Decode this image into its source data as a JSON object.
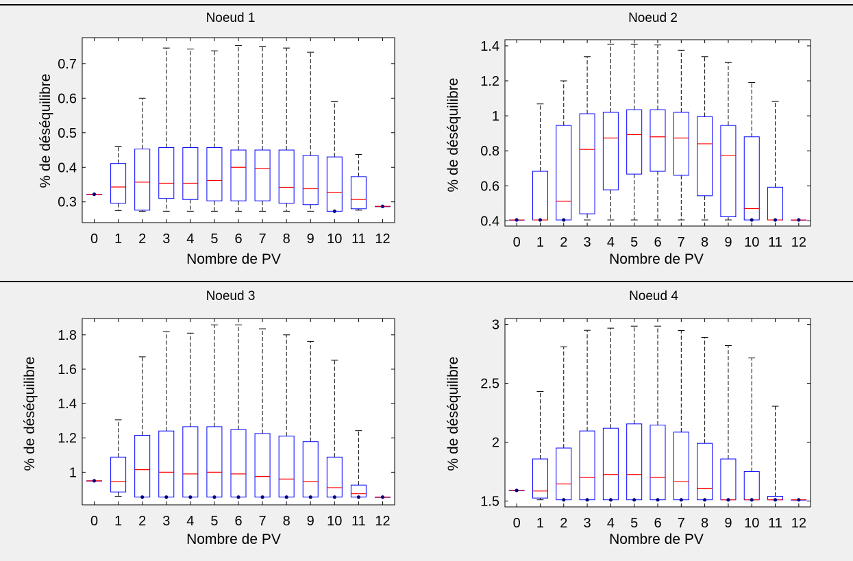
{
  "figure": {
    "background": "#f0f0f0",
    "axes_background": "#ffffff",
    "box_color": "#0000ff",
    "median_color": "#ff0000",
    "whisker_color": "#000000",
    "outlier_color": "#000080"
  },
  "chart_data": [
    {
      "type": "boxplot",
      "title": "Noeud 1",
      "xlabel": "Nombre de PV",
      "ylabel": "% de déséquilibre",
      "categories": [
        "0",
        "1",
        "2",
        "3",
        "4",
        "5",
        "6",
        "7",
        "8",
        "9",
        "10",
        "11",
        "12"
      ],
      "ylim": [
        0.24,
        0.775
      ],
      "yticks": [
        0.3,
        0.4,
        0.5,
        0.6,
        0.7
      ],
      "yticklabels": [
        "0.3",
        "0.4",
        "0.5",
        "0.6",
        "0.7"
      ],
      "grid": false,
      "boxes": [
        {
          "x": "0",
          "min": 0.322,
          "q1": 0.322,
          "median": 0.322,
          "q3": 0.322,
          "max": 0.322,
          "outliers": [
            0.322
          ]
        },
        {
          "x": "1",
          "min": 0.275,
          "q1": 0.296,
          "median": 0.343,
          "q3": 0.411,
          "max": 0.461,
          "outliers": []
        },
        {
          "x": "2",
          "min": 0.273,
          "q1": 0.276,
          "median": 0.357,
          "q3": 0.453,
          "max": 0.6,
          "outliers": []
        },
        {
          "x": "3",
          "min": 0.273,
          "q1": 0.31,
          "median": 0.354,
          "q3": 0.457,
          "max": 0.745,
          "outliers": []
        },
        {
          "x": "4",
          "min": 0.273,
          "q1": 0.307,
          "median": 0.354,
          "q3": 0.457,
          "max": 0.742,
          "outliers": []
        },
        {
          "x": "5",
          "min": 0.273,
          "q1": 0.303,
          "median": 0.362,
          "q3": 0.457,
          "max": 0.737,
          "outliers": []
        },
        {
          "x": "6",
          "min": 0.273,
          "q1": 0.303,
          "median": 0.4,
          "q3": 0.45,
          "max": 0.752,
          "outliers": []
        },
        {
          "x": "7",
          "min": 0.273,
          "q1": 0.303,
          "median": 0.396,
          "q3": 0.45,
          "max": 0.75,
          "outliers": []
        },
        {
          "x": "8",
          "min": 0.273,
          "q1": 0.296,
          "median": 0.342,
          "q3": 0.45,
          "max": 0.745,
          "outliers": []
        },
        {
          "x": "9",
          "min": 0.273,
          "q1": 0.292,
          "median": 0.338,
          "q3": 0.434,
          "max": 0.733,
          "outliers": []
        },
        {
          "x": "10",
          "min": 0.273,
          "q1": 0.273,
          "median": 0.327,
          "q3": 0.43,
          "max": 0.59,
          "outliers": [
            0.273
          ]
        },
        {
          "x": "11",
          "min": 0.276,
          "q1": 0.28,
          "median": 0.307,
          "q3": 0.373,
          "max": 0.437,
          "outliers": []
        },
        {
          "x": "12",
          "min": 0.287,
          "q1": 0.287,
          "median": 0.287,
          "q3": 0.287,
          "max": 0.287,
          "outliers": [
            0.287
          ]
        }
      ]
    },
    {
      "type": "boxplot",
      "title": "Noeud 2",
      "xlabel": "Nombre de PV",
      "ylabel": "% de déséquilibre",
      "categories": [
        "0",
        "1",
        "2",
        "3",
        "4",
        "5",
        "6",
        "7",
        "8",
        "9",
        "10",
        "11",
        "12"
      ],
      "ylim": [
        0.37,
        1.435
      ],
      "yticks": [
        0.4,
        0.6,
        0.8,
        1.0,
        1.2,
        1.4
      ],
      "yticklabels": [
        "0.4",
        "0.6",
        "0.8",
        "1",
        "1.2",
        "1.4"
      ],
      "grid": false,
      "boxes": [
        {
          "x": "0",
          "min": 0.405,
          "q1": 0.405,
          "median": 0.405,
          "q3": 0.405,
          "max": 0.405,
          "outliers": [
            0.405
          ]
        },
        {
          "x": "1",
          "min": 0.405,
          "q1": 0.405,
          "median": 0.405,
          "q3": 0.683,
          "max": 1.068,
          "outliers": [
            0.405
          ]
        },
        {
          "x": "2",
          "min": 0.405,
          "q1": 0.405,
          "median": 0.512,
          "q3": 0.945,
          "max": 1.2,
          "outliers": [
            0.405
          ]
        },
        {
          "x": "3",
          "min": 0.405,
          "q1": 0.44,
          "median": 0.808,
          "q3": 1.012,
          "max": 1.338,
          "outliers": []
        },
        {
          "x": "4",
          "min": 0.405,
          "q1": 0.577,
          "median": 0.873,
          "q3": 1.02,
          "max": 1.41,
          "outliers": []
        },
        {
          "x": "5",
          "min": 0.405,
          "q1": 0.667,
          "median": 0.893,
          "q3": 1.035,
          "max": 1.41,
          "outliers": []
        },
        {
          "x": "6",
          "min": 0.405,
          "q1": 0.683,
          "median": 0.88,
          "q3": 1.035,
          "max": 1.405,
          "outliers": []
        },
        {
          "x": "7",
          "min": 0.405,
          "q1": 0.66,
          "median": 0.873,
          "q3": 1.02,
          "max": 1.375,
          "outliers": []
        },
        {
          "x": "8",
          "min": 0.405,
          "q1": 0.543,
          "median": 0.84,
          "q3": 0.995,
          "max": 1.338,
          "outliers": []
        },
        {
          "x": "9",
          "min": 0.405,
          "q1": 0.423,
          "median": 0.775,
          "q3": 0.945,
          "max": 1.305,
          "outliers": []
        },
        {
          "x": "10",
          "min": 0.405,
          "q1": 0.405,
          "median": 0.47,
          "q3": 0.88,
          "max": 1.19,
          "outliers": [
            0.405
          ]
        },
        {
          "x": "11",
          "min": 0.405,
          "q1": 0.405,
          "median": 0.405,
          "q3": 0.592,
          "max": 1.082,
          "outliers": [
            0.405
          ]
        },
        {
          "x": "12",
          "min": 0.405,
          "q1": 0.405,
          "median": 0.405,
          "q3": 0.405,
          "max": 0.405,
          "outliers": [
            0.405
          ]
        }
      ]
    },
    {
      "type": "boxplot",
      "title": "Noeud 3",
      "xlabel": "Nombre de PV",
      "ylabel": "% de déséquilibre",
      "categories": [
        "0",
        "1",
        "2",
        "3",
        "4",
        "5",
        "6",
        "7",
        "8",
        "9",
        "10",
        "11",
        "12"
      ],
      "ylim": [
        0.81,
        1.895
      ],
      "yticks": [
        1.0,
        1.2,
        1.4,
        1.6,
        1.8
      ],
      "yticklabels": [
        "1",
        "1.2",
        "1.4",
        "1.6",
        "1.8"
      ],
      "grid": false,
      "boxes": [
        {
          "x": "0",
          "min": 0.95,
          "q1": 0.95,
          "median": 0.95,
          "q3": 0.95,
          "max": 0.95,
          "outliers": [
            0.95
          ]
        },
        {
          "x": "1",
          "min": 0.86,
          "q1": 0.885,
          "median": 0.945,
          "q3": 1.088,
          "max": 1.305,
          "outliers": []
        },
        {
          "x": "2",
          "min": 0.855,
          "q1": 0.855,
          "median": 1.015,
          "q3": 1.215,
          "max": 1.672,
          "outliers": [
            0.855
          ]
        },
        {
          "x": "3",
          "min": 0.855,
          "q1": 0.855,
          "median": 1.0,
          "q3": 1.24,
          "max": 1.818,
          "outliers": [
            0.855
          ]
        },
        {
          "x": "4",
          "min": 0.855,
          "q1": 0.855,
          "median": 0.99,
          "q3": 1.265,
          "max": 1.81,
          "outliers": [
            0.855
          ]
        },
        {
          "x": "5",
          "min": 0.855,
          "q1": 0.855,
          "median": 1.0,
          "q3": 1.265,
          "max": 1.858,
          "outliers": [
            0.855
          ]
        },
        {
          "x": "6",
          "min": 0.855,
          "q1": 0.855,
          "median": 0.99,
          "q3": 1.248,
          "max": 1.858,
          "outliers": [
            0.855
          ]
        },
        {
          "x": "7",
          "min": 0.855,
          "q1": 0.855,
          "median": 0.975,
          "q3": 1.225,
          "max": 1.835,
          "outliers": [
            0.855
          ]
        },
        {
          "x": "8",
          "min": 0.855,
          "q1": 0.855,
          "median": 0.96,
          "q3": 1.21,
          "max": 1.8,
          "outliers": [
            0.855
          ]
        },
        {
          "x": "9",
          "min": 0.855,
          "q1": 0.855,
          "median": 0.945,
          "q3": 1.178,
          "max": 1.762,
          "outliers": [
            0.855
          ]
        },
        {
          "x": "10",
          "min": 0.855,
          "q1": 0.855,
          "median": 0.91,
          "q3": 1.088,
          "max": 1.652,
          "outliers": [
            0.855
          ]
        },
        {
          "x": "11",
          "min": 0.855,
          "q1": 0.855,
          "median": 0.875,
          "q3": 0.925,
          "max": 1.242,
          "outliers": [
            0.855
          ]
        },
        {
          "x": "12",
          "min": 0.855,
          "q1": 0.855,
          "median": 0.855,
          "q3": 0.855,
          "max": 0.855,
          "outliers": [
            0.855
          ]
        }
      ]
    },
    {
      "type": "boxplot",
      "title": "Noeud 4",
      "xlabel": "Nombre de PV",
      "ylabel": "% de déséquilibre",
      "categories": [
        "0",
        "1",
        "2",
        "3",
        "4",
        "5",
        "6",
        "7",
        "8",
        "9",
        "10",
        "11",
        "12"
      ],
      "ylim": [
        1.45,
        3.05
      ],
      "yticks": [
        1.5,
        2.0,
        2.5,
        3.0
      ],
      "yticklabels": [
        "1.5",
        "2",
        "2.5",
        "3"
      ],
      "grid": false,
      "boxes": [
        {
          "x": "0",
          "min": 1.59,
          "q1": 1.59,
          "median": 1.59,
          "q3": 1.59,
          "max": 1.59,
          "outliers": [
            1.59
          ]
        },
        {
          "x": "1",
          "min": 1.51,
          "q1": 1.525,
          "median": 1.585,
          "q3": 1.857,
          "max": 2.43,
          "outliers": []
        },
        {
          "x": "2",
          "min": 1.51,
          "q1": 1.51,
          "median": 1.645,
          "q3": 1.95,
          "max": 2.81,
          "outliers": [
            1.51
          ]
        },
        {
          "x": "3",
          "min": 1.51,
          "q1": 1.51,
          "median": 1.7,
          "q3": 2.095,
          "max": 2.95,
          "outliers": [
            1.51
          ]
        },
        {
          "x": "4",
          "min": 1.51,
          "q1": 1.51,
          "median": 1.725,
          "q3": 2.118,
          "max": 2.968,
          "outliers": [
            1.51
          ]
        },
        {
          "x": "5",
          "min": 1.51,
          "q1": 1.51,
          "median": 1.725,
          "q3": 2.155,
          "max": 2.985,
          "outliers": [
            1.51
          ]
        },
        {
          "x": "6",
          "min": 1.51,
          "q1": 1.51,
          "median": 1.7,
          "q3": 2.145,
          "max": 2.985,
          "outliers": [
            1.51
          ]
        },
        {
          "x": "7",
          "min": 1.51,
          "q1": 1.51,
          "median": 1.665,
          "q3": 2.085,
          "max": 2.948,
          "outliers": [
            1.51
          ]
        },
        {
          "x": "8",
          "min": 1.51,
          "q1": 1.51,
          "median": 1.605,
          "q3": 1.99,
          "max": 2.89,
          "outliers": [
            1.51
          ]
        },
        {
          "x": "9",
          "min": 1.51,
          "q1": 1.51,
          "median": 1.51,
          "q3": 1.857,
          "max": 2.82,
          "outliers": [
            1.51
          ]
        },
        {
          "x": "10",
          "min": 1.51,
          "q1": 1.51,
          "median": 1.51,
          "q3": 1.75,
          "max": 2.715,
          "outliers": [
            1.51
          ]
        },
        {
          "x": "11",
          "min": 1.51,
          "q1": 1.51,
          "median": 1.51,
          "q3": 1.54,
          "max": 2.305,
          "outliers": [
            1.51
          ]
        },
        {
          "x": "12",
          "min": 1.51,
          "q1": 1.51,
          "median": 1.51,
          "q3": 1.51,
          "max": 1.51,
          "outliers": [
            1.51
          ]
        }
      ]
    }
  ]
}
